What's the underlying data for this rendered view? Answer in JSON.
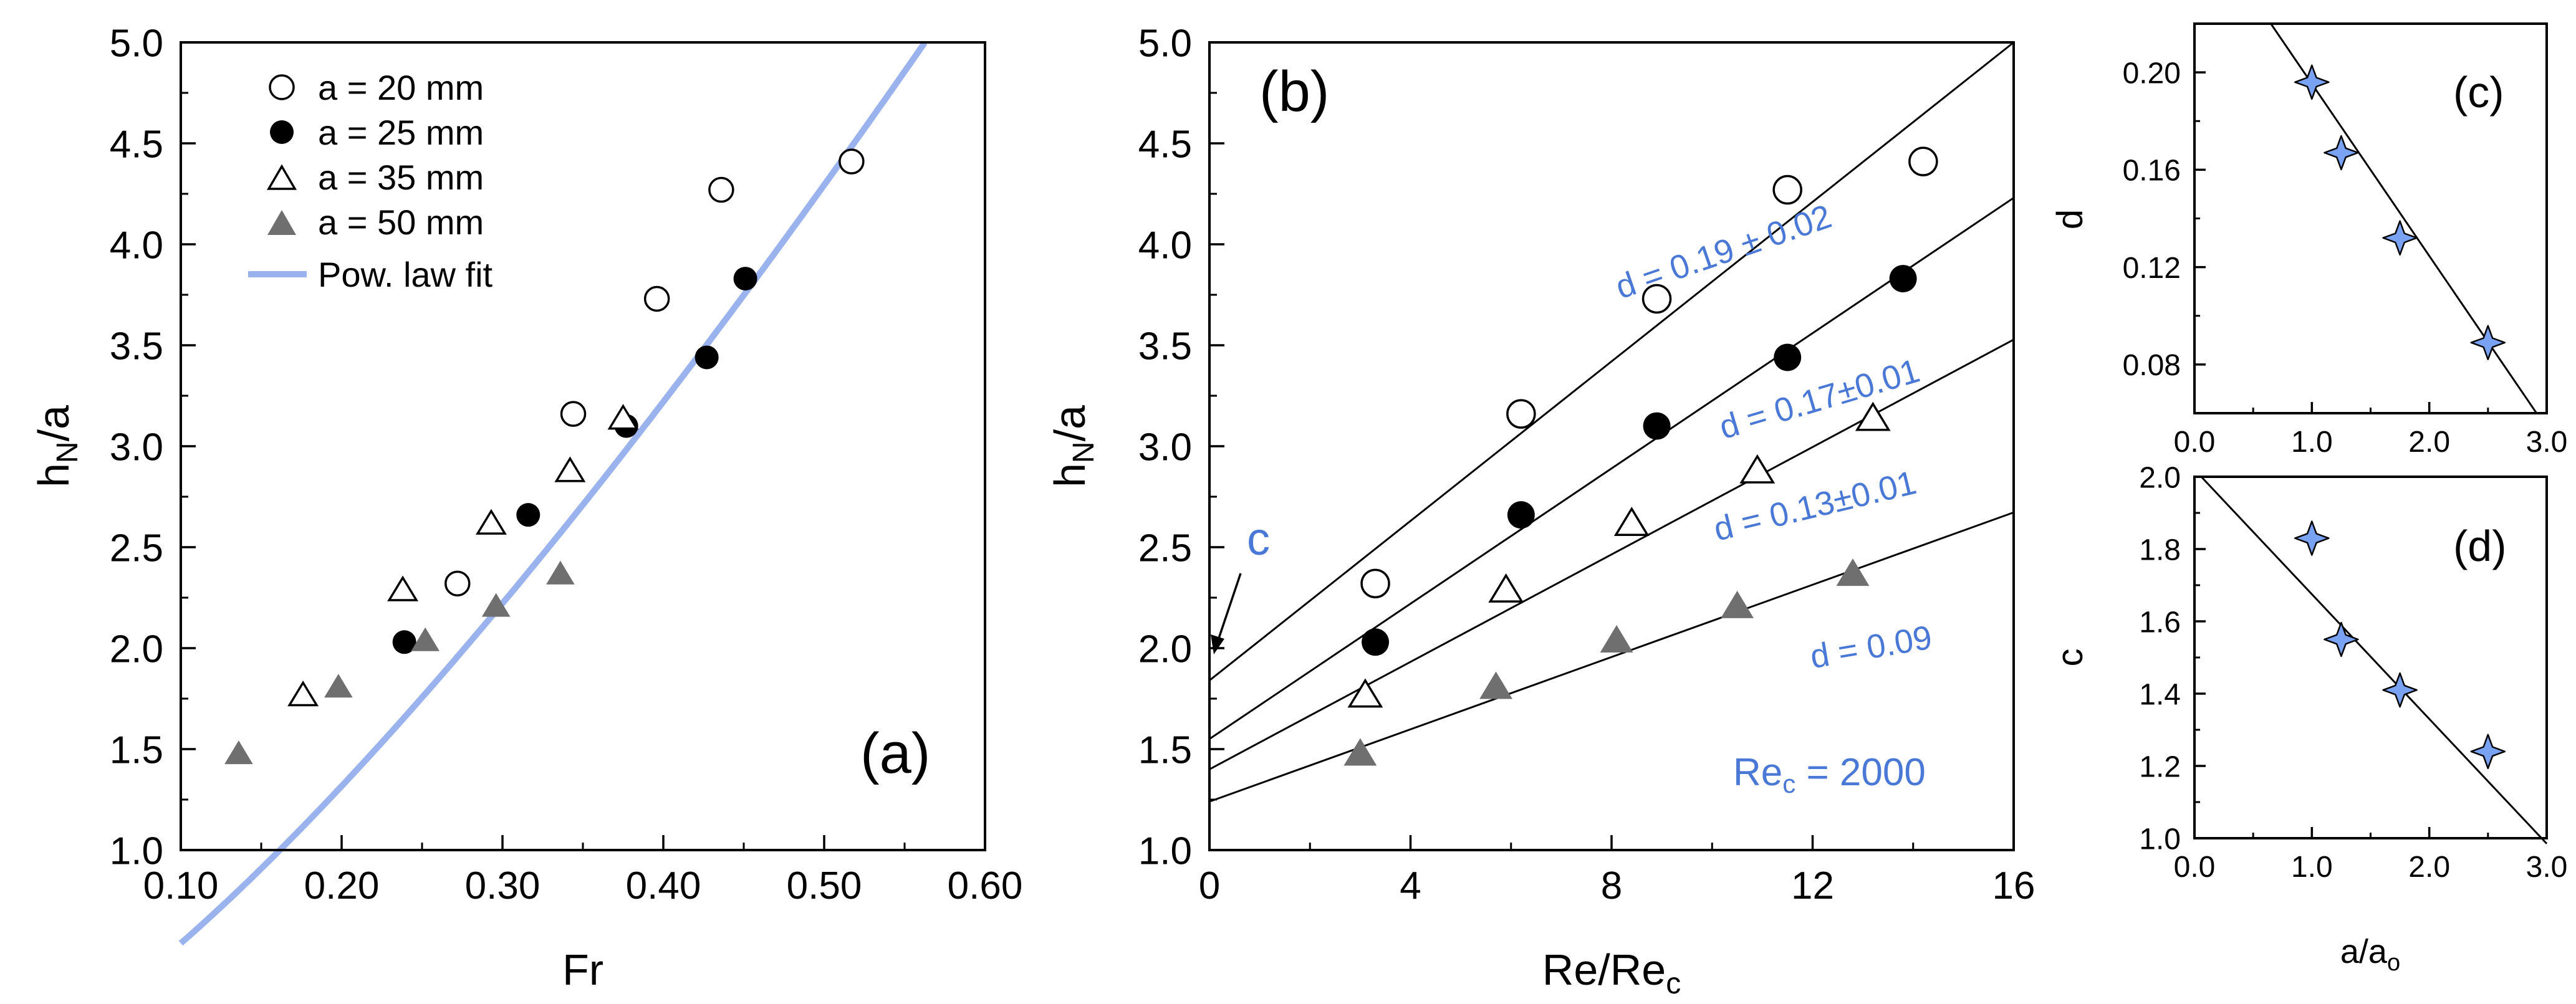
{
  "chart_data": [
    {
      "panel": "a",
      "type": "scatter",
      "panel_label": "(a)",
      "xlabel": "Fr",
      "ylabel_main": "h",
      "ylabel_sub": "N",
      "ylabel_tail": "/a",
      "xlim": [
        0.1,
        0.6
      ],
      "ylim": [
        1.0,
        5.0
      ],
      "xticks": [
        "0.10",
        "0.20",
        "0.30",
        "0.40",
        "0.50",
        "0.60"
      ],
      "xtick_values": [
        0.1,
        0.2,
        0.3,
        0.4,
        0.5,
        0.6
      ],
      "yticks": [
        "1.0",
        "1.5",
        "2.0",
        "2.5",
        "3.0",
        "3.5",
        "4.0",
        "4.5",
        "5.0"
      ],
      "ytick_values": [
        1.0,
        1.5,
        2.0,
        2.5,
        3.0,
        3.5,
        4.0,
        4.5,
        5.0
      ],
      "legend_position": "top-left",
      "series": [
        {
          "name": "a = 20 mm",
          "marker": "open-circle",
          "x": [
            0.272,
            0.344,
            0.396,
            0.436,
            0.517
          ],
          "y": [
            2.32,
            3.16,
            3.73,
            4.27,
            4.41
          ]
        },
        {
          "name": "a = 25 mm",
          "marker": "filled-circle",
          "x": [
            0.239,
            0.316,
            0.377,
            0.427,
            0.451
          ],
          "y": [
            2.03,
            2.66,
            3.1,
            3.44,
            3.83
          ]
        },
        {
          "name": "a = 35 mm",
          "marker": "open-triangle",
          "x": [
            0.176,
            0.238,
            0.293,
            0.342,
            0.375
          ],
          "y": [
            1.76,
            2.28,
            2.61,
            2.87,
            3.13
          ]
        },
        {
          "name": "a = 50 mm",
          "marker": "filled-triangle",
          "x": [
            0.136,
            0.198,
            0.252,
            0.296,
            0.336
          ],
          "y": [
            1.47,
            1.8,
            2.03,
            2.2,
            2.36
          ]
        }
      ],
      "fit": {
        "name": "Pow. law fit",
        "color": "#9ab3ee",
        "coefficient": 10.5,
        "exponent": 1.29
      },
      "marker_colors": {
        "filled_circle": "#000000",
        "filled_triangle": "#6f6f6f"
      }
    },
    {
      "panel": "b",
      "type": "scatter",
      "panel_label": "(b)",
      "xlabel_main": "Re/Re",
      "xlabel_sub": "c",
      "ylabel_main": "h",
      "ylabel_sub": "N",
      "ylabel_tail": "/a",
      "xlim": [
        0,
        16
      ],
      "ylim": [
        1.0,
        5.0
      ],
      "xticks": [
        "0",
        "4",
        "8",
        "12",
        "16"
      ],
      "xtick_values": [
        0,
        4,
        8,
        12,
        16
      ],
      "yticks": [
        "1.0",
        "1.5",
        "2.0",
        "2.5",
        "3.0",
        "3.5",
        "4.0",
        "4.5",
        "5.0"
      ],
      "ytick_values": [
        1.0,
        1.5,
        2.0,
        2.5,
        3.0,
        3.5,
        4.0,
        4.5,
        5.0
      ],
      "series": [
        {
          "marker": "open-circle",
          "x": [
            3.3,
            6.2,
            8.9,
            11.5,
            14.2
          ],
          "y": [
            2.32,
            3.16,
            3.73,
            4.27,
            4.41
          ]
        },
        {
          "marker": "filled-circle",
          "x": [
            3.3,
            6.2,
            8.9,
            11.5,
            13.8
          ],
          "y": [
            2.03,
            2.66,
            3.1,
            3.44,
            3.83
          ]
        },
        {
          "marker": "open-triangle",
          "x": [
            3.1,
            5.9,
            8.4,
            10.9,
            13.2
          ],
          "y": [
            1.76,
            2.28,
            2.61,
            2.87,
            3.13
          ]
        },
        {
          "marker": "filled-triangle",
          "x": [
            3.0,
            5.7,
            8.1,
            10.5,
            12.8
          ],
          "y": [
            1.47,
            1.8,
            2.03,
            2.2,
            2.36
          ]
        }
      ],
      "fit_lines": [
        {
          "intercept": 1.84,
          "slope": 0.1975,
          "label": "d = 0.19 ± 0.02",
          "label_x": 10.3,
          "label_y": 3.91,
          "angle": -19
        },
        {
          "intercept": 1.55,
          "slope": 0.1675,
          "label": "d = 0.17±0.01",
          "label_x": 12.2,
          "label_y": 3.18,
          "angle": -16.5
        },
        {
          "intercept": 1.4,
          "slope": 0.133,
          "label": "d = 0.13±0.01",
          "label_x": 12.1,
          "label_y": 2.65,
          "angle": -13.5
        },
        {
          "intercept": 1.24,
          "slope": 0.0895,
          "label": "d = 0.09",
          "label_x": 13.2,
          "label_y": 1.95,
          "angle": -9.5
        }
      ],
      "annotation_c": "c",
      "annotation_re_main": "Re",
      "annotation_re_sub": "c",
      "annotation_re_tail": " = 2000",
      "label_color": "#4a78d6"
    },
    {
      "panel": "c",
      "type": "scatter",
      "panel_label": "(c)",
      "ylabel": "d",
      "xlim": [
        0.0,
        3.0
      ],
      "ylim": [
        0.06,
        0.22
      ],
      "xticks": [
        "0.0",
        "1.0",
        "2.0",
        "3.0"
      ],
      "xtick_values": [
        0.0,
        1.0,
        2.0,
        3.0
      ],
      "yticks": [
        "0.08",
        "0.12",
        "0.16",
        "0.20"
      ],
      "ytick_values": [
        0.08,
        0.12,
        0.16,
        0.2
      ],
      "x": [
        1.0,
        1.25,
        1.75,
        2.5
      ],
      "y": [
        0.196,
        0.167,
        0.132,
        0.089
      ],
      "fit_line": {
        "intercept": 0.266,
        "slope": -0.0707
      },
      "marker_color": "#7aa2f2"
    },
    {
      "panel": "d",
      "type": "scatter",
      "panel_label": "(d)",
      "ylabel": "c",
      "xlabel_main": "a/a",
      "xlabel_sub": "o",
      "xlim": [
        0.0,
        3.0
      ],
      "ylim": [
        1.0,
        2.0
      ],
      "xticks": [
        "0.0",
        "1.0",
        "2.0",
        "3.0"
      ],
      "xtick_values": [
        0.0,
        1.0,
        2.0,
        3.0
      ],
      "yticks": [
        "1.0",
        "1.2",
        "1.4",
        "1.6",
        "1.8",
        "2.0"
      ],
      "ytick_values": [
        1.0,
        1.2,
        1.4,
        1.6,
        1.8,
        2.0
      ],
      "x": [
        1.0,
        1.25,
        1.75,
        2.5
      ],
      "y": [
        1.83,
        1.55,
        1.41,
        1.24
      ],
      "fit_line": {
        "intercept": 2.02,
        "slope": -0.345
      },
      "marker_color": "#7aa2f2"
    }
  ]
}
